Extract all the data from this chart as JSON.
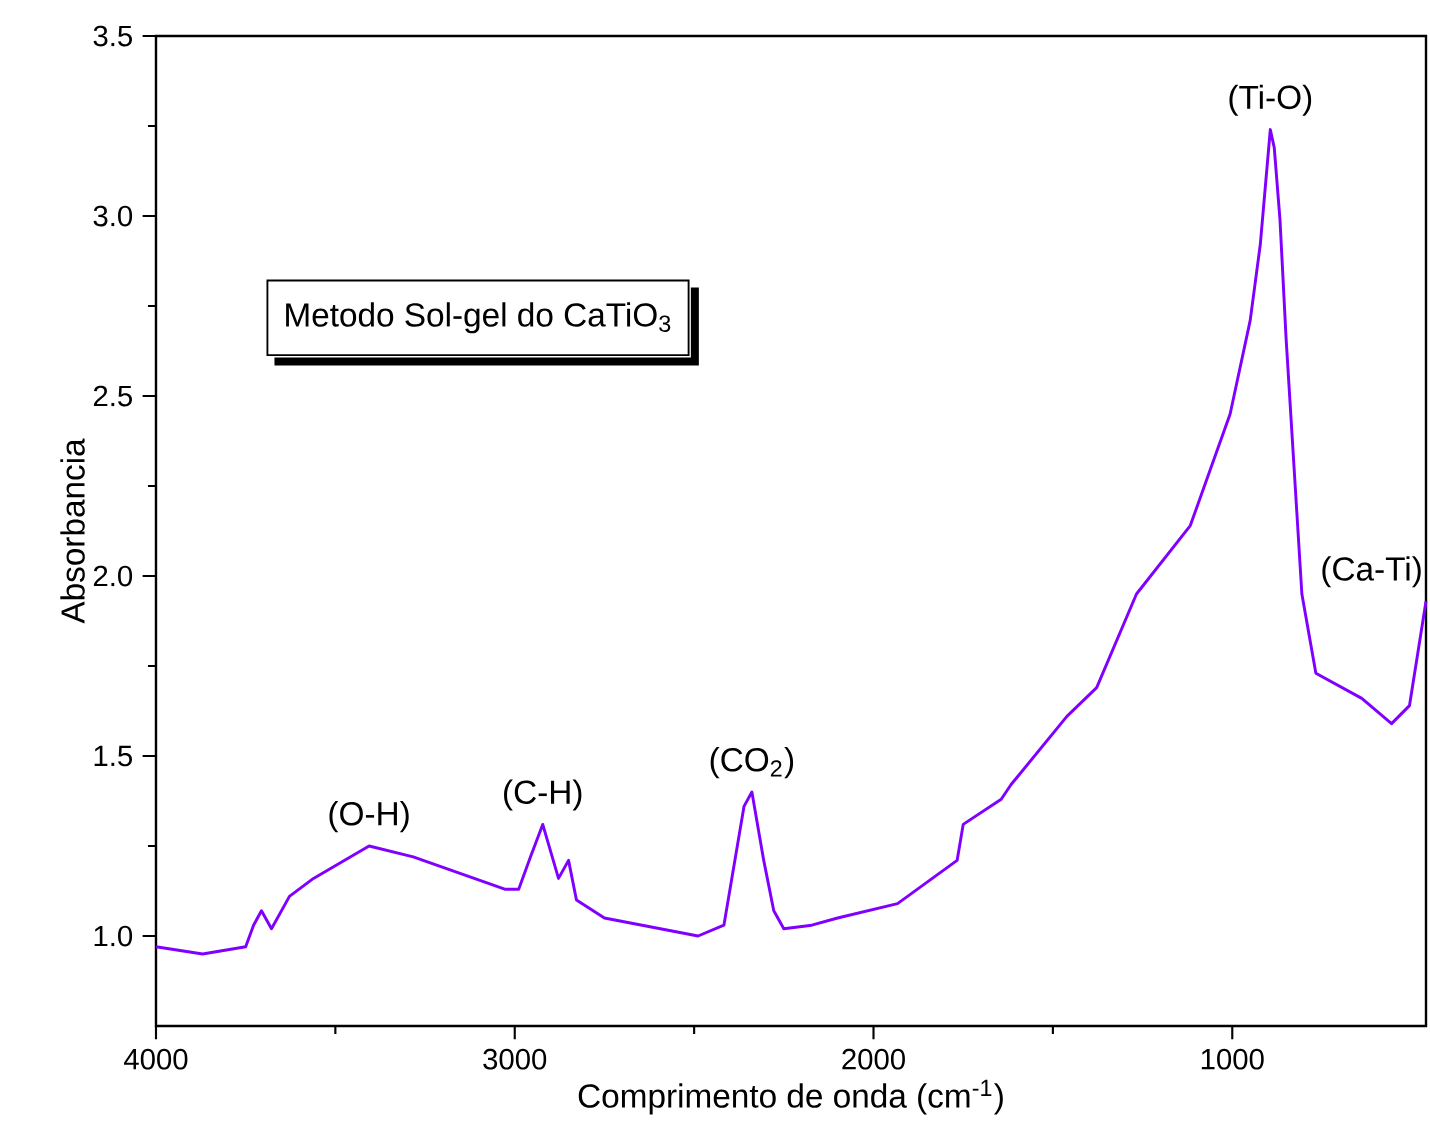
{
  "chart_data": {
    "type": "line",
    "xlabel": "Comprimento de onda (cm$^{-1}$)",
    "ylabel": "Absorbancia",
    "series": [
      {
        "color": "#8000ff",
        "x": [
          4000,
          3870,
          3750,
          3728,
          3706,
          3678,
          3628,
          3561,
          3406,
          3283,
          3028,
          2989,
          2956,
          2922,
          2878,
          2850,
          2828,
          2750,
          2489,
          2417,
          2361,
          2339,
          2306,
          2278,
          2250,
          2172,
          2100,
          1933,
          1767,
          1750,
          1644,
          1617,
          1461,
          1378,
          1267,
          1117,
          1006,
          950,
          922,
          894,
          883,
          867,
          850,
          806,
          767,
          639,
          556,
          506,
          460
        ],
        "values": [
          0.97,
          0.95,
          0.97,
          1.03,
          1.07,
          1.02,
          1.11,
          1.16,
          1.25,
          1.22,
          1.13,
          1.13,
          1.22,
          1.31,
          1.16,
          1.21,
          1.1,
          1.05,
          1.0,
          1.03,
          1.36,
          1.4,
          1.21,
          1.07,
          1.02,
          1.03,
          1.05,
          1.09,
          1.21,
          1.31,
          1.38,
          1.42,
          1.61,
          1.69,
          1.95,
          2.14,
          2.45,
          2.71,
          2.92,
          3.24,
          3.19,
          2.99,
          2.66,
          1.95,
          1.73,
          1.66,
          1.59,
          1.64,
          1.93
        ]
      }
    ],
    "xlim": [
      4000,
      460
    ],
    "ylim": [
      0.75,
      3.5
    ],
    "xticks": [
      4000,
      3000,
      2000,
      1000
    ],
    "yticks": [
      {
        "value": 1,
        "label": "1.0"
      },
      {
        "value": 1.5,
        "label": "1.5"
      },
      {
        "value": 2,
        "label": "2.0"
      },
      {
        "value": 2.5,
        "label": "2.5"
      },
      {
        "value": 3,
        "label": "3.0"
      },
      {
        "value": 3.5,
        "label": "3.5"
      }
    ],
    "annotations": [
      "Metodo Sol-gel do CaTiO$_{3}$",
      {
        "text": "(O-H)",
        "x": 3406,
        "y": 1.25
      },
      {
        "text": "(C-H)",
        "x": 2922,
        "y": 1.31
      },
      {
        "text": "(CO$_{2}$)",
        "x": 2339,
        "y": 1.4
      },
      {
        "text": "(Ti-O)",
        "x": 894,
        "y": 3.24
      },
      {
        "text": "(Ca-Ti)",
        "x": 460,
        "y": 1.93
      }
    ],
    "marker": "none",
    "line_style": "solid"
  }
}
